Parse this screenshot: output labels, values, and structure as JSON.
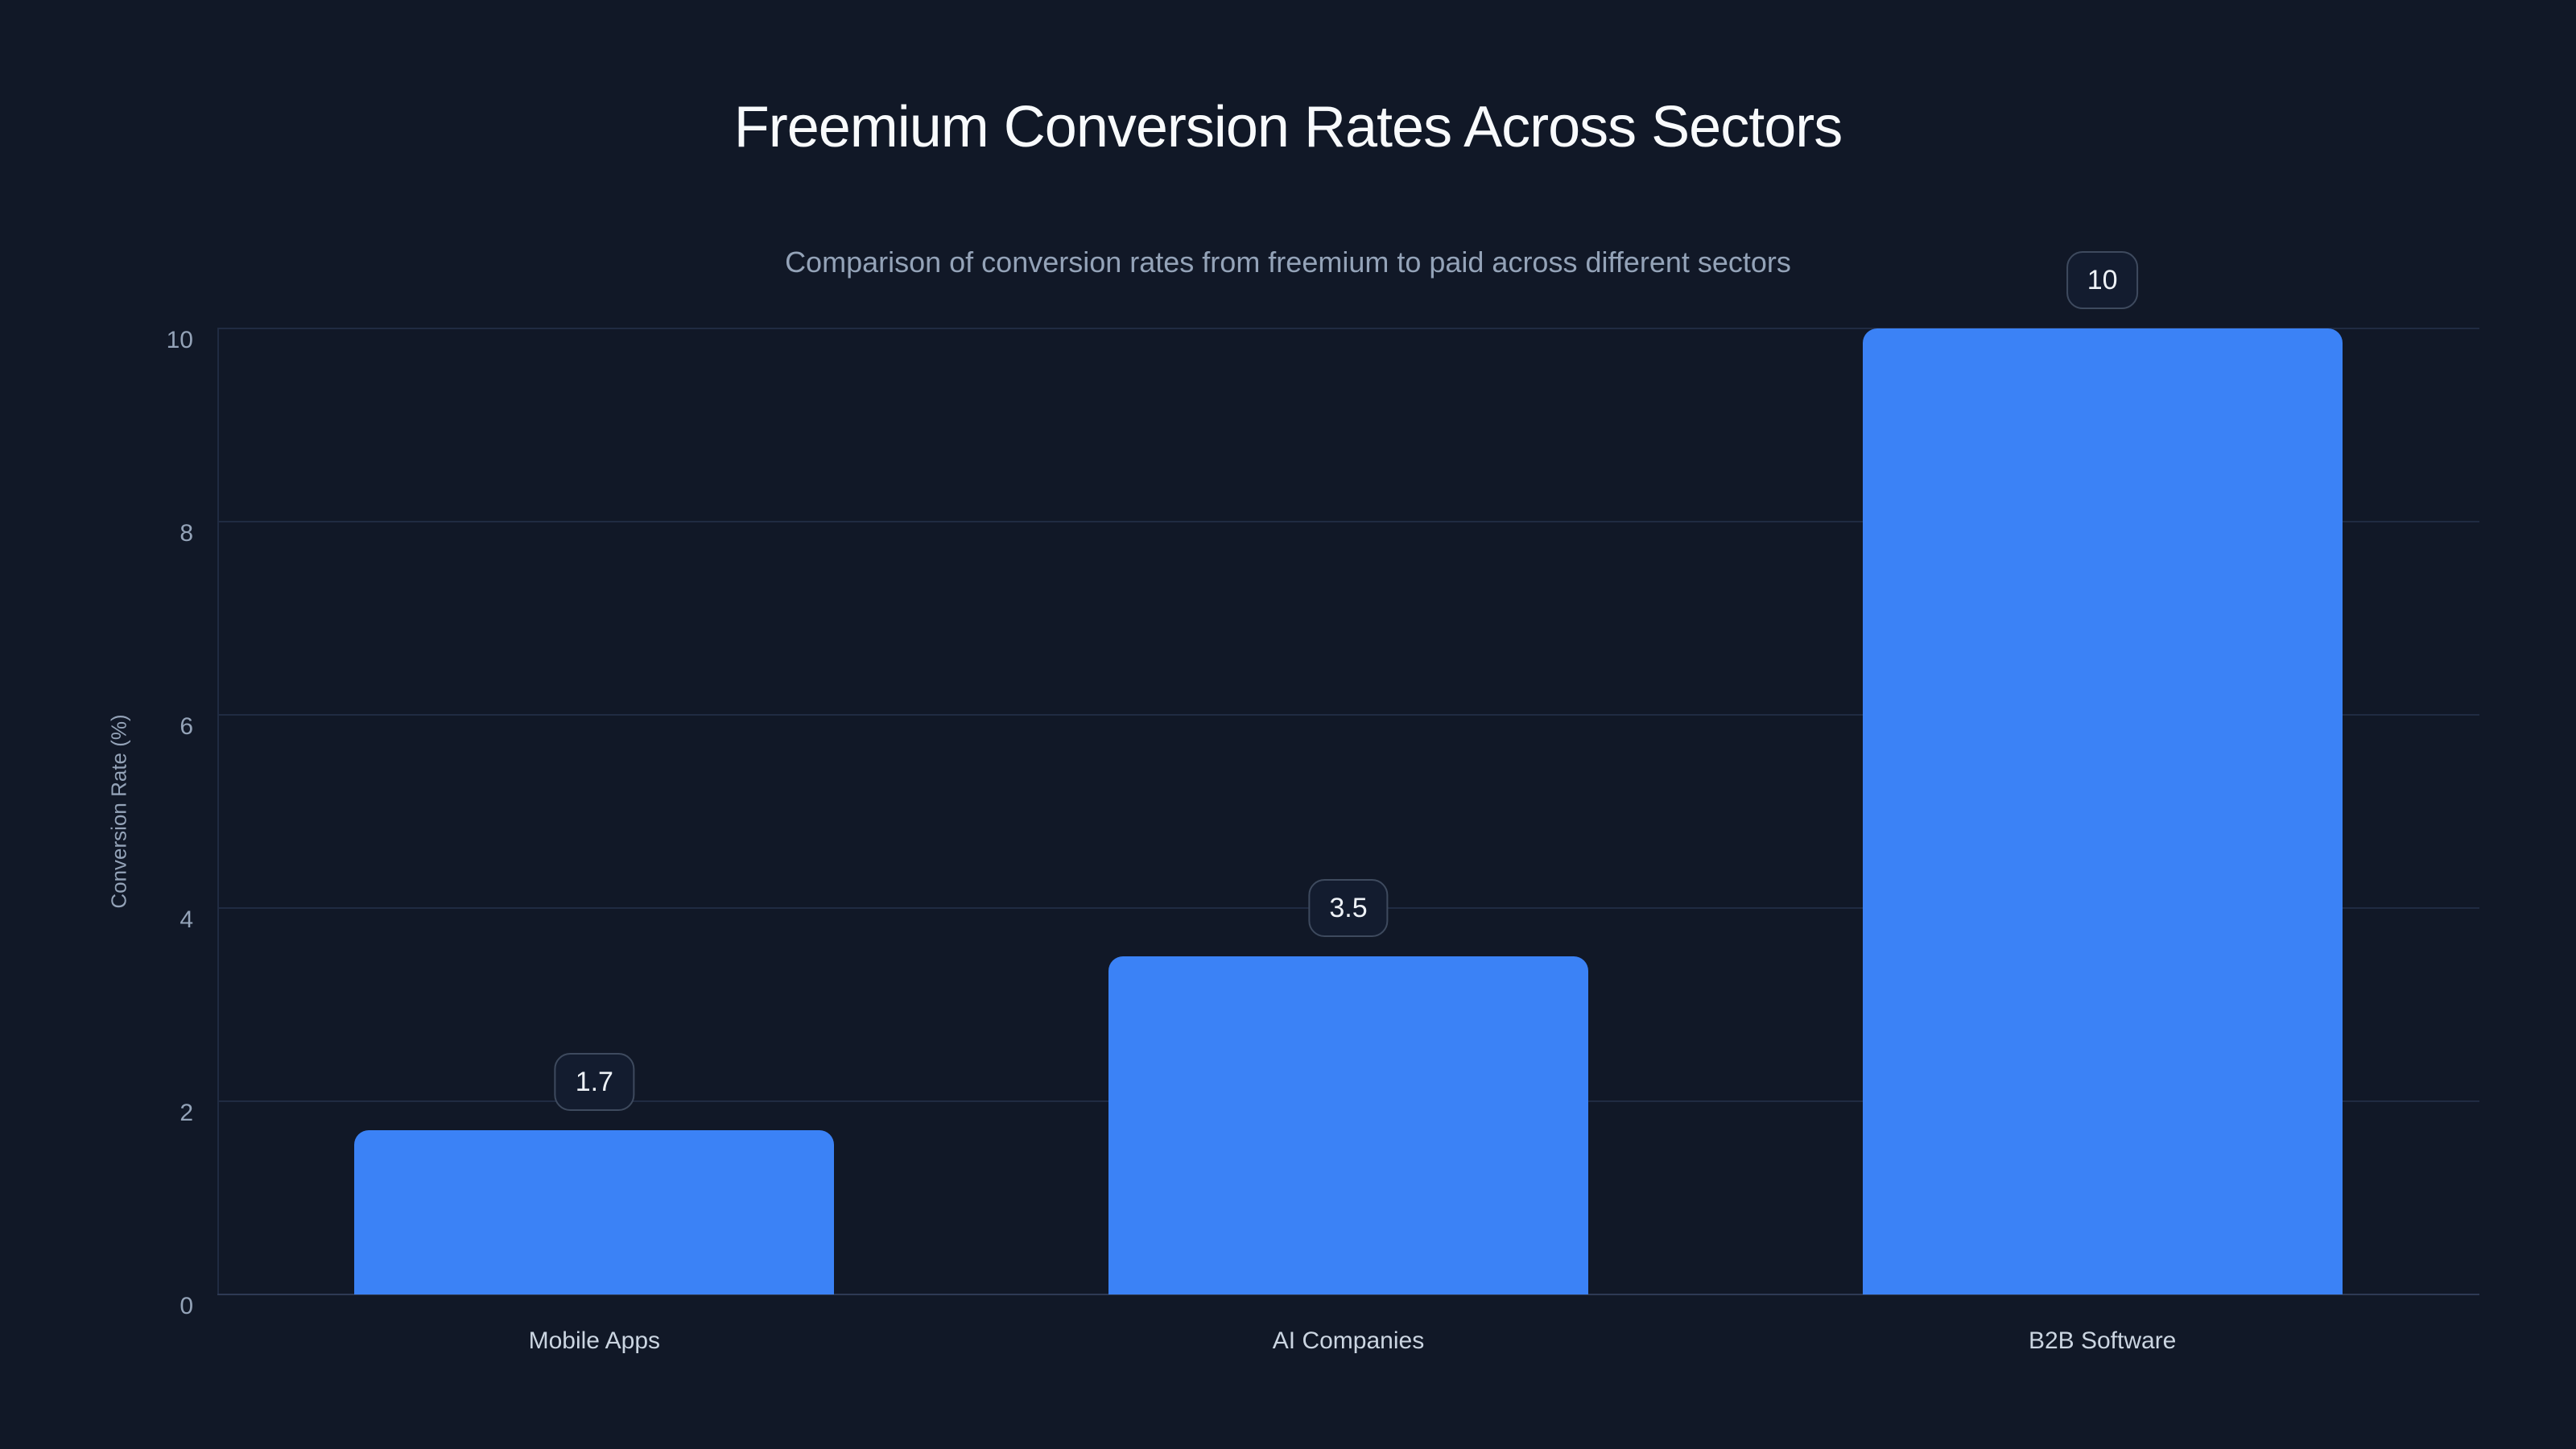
{
  "chart_data": {
    "type": "bar",
    "title": "Freemium Conversion Rates Across Sectors",
    "subtitle": "Comparison of conversion rates from freemium to paid across different sectors",
    "categories": [
      "Mobile Apps",
      "AI Companies",
      "B2B Software"
    ],
    "values": [
      1.7,
      3.5,
      10
    ],
    "value_labels": [
      "1.7",
      "3.5",
      "10"
    ],
    "xlabel": "",
    "ylabel": "Conversion Rate (%)",
    "ylim": [
      0,
      10
    ],
    "yticks": [
      0,
      2,
      4,
      6,
      8,
      10
    ],
    "grid": true,
    "legend_position": "none",
    "bar_color": "#3b82f6"
  },
  "colors": {
    "background": "#111827",
    "bar": "#3b82f6",
    "title_text": "#f8fafc",
    "subtitle_text": "#94a3b8",
    "tick_text": "#94a3b8",
    "category_text": "#cbd5e1",
    "gridline": "#202b42",
    "axis_line": "#2e3a54",
    "badge_bg": "#131c2f",
    "badge_border": "#3e4a5e",
    "badge_text": "#eef2f7"
  }
}
